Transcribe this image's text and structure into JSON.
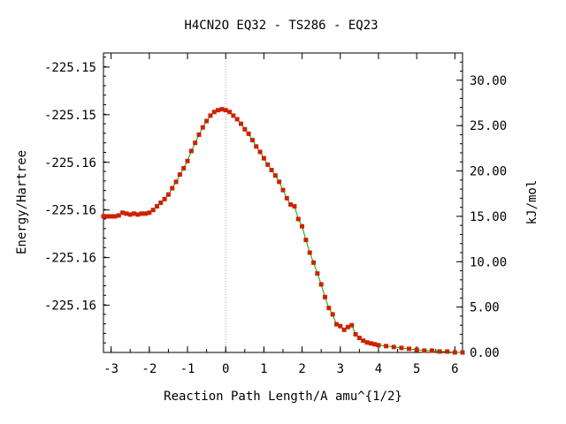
{
  "chart_data": {
    "type": "line",
    "title": "H4CN2O   EQ32 - TS286 - EQ23",
    "xlabel": "Reaction Path Length/A amu^{1/2}",
    "ylabel_left": "Energy/Hartree",
    "ylabel_right": "kJ/mol",
    "xlim": [
      -3.2,
      6.2
    ],
    "ylim_right": [
      0,
      33
    ],
    "x_ticks": [
      -3,
      -2,
      -1,
      0,
      1,
      2,
      3,
      4,
      5,
      6
    ],
    "x_tick_labels": [
      "-3",
      "-2",
      "-1",
      "0",
      "1",
      "2",
      "3",
      "4",
      "5",
      "6"
    ],
    "left_ticks_kj": [
      5.2,
      10.45,
      15.7,
      20.95,
      26.2,
      31.45
    ],
    "left_tick_labels": [
      "-225.16",
      "-225.16",
      "-225.16",
      "-225.16",
      "-225.15",
      "-225.15"
    ],
    "right_ticks": [
      0,
      5,
      10,
      15,
      20,
      25,
      30
    ],
    "right_tick_labels": [
      "0.00",
      "5.00",
      "10.00",
      "15.00",
      "20.00",
      "25.00",
      "30.00"
    ],
    "ts_marker_x": 0,
    "series": [
      {
        "line_color": "#00aa00",
        "marker_color": "#cc2200",
        "x": [
          -3.2,
          -3.1,
          -3.0,
          -2.9,
          -2.8,
          -2.7,
          -2.6,
          -2.5,
          -2.4,
          -2.3,
          -2.2,
          -2.1,
          -2.0,
          -1.9,
          -1.8,
          -1.7,
          -1.6,
          -1.5,
          -1.4,
          -1.3,
          -1.2,
          -1.1,
          -1.0,
          -0.9,
          -0.8,
          -0.7,
          -0.6,
          -0.5,
          -0.4,
          -0.3,
          -0.2,
          -0.1,
          0.0,
          0.1,
          0.2,
          0.3,
          0.4,
          0.5,
          0.6,
          0.7,
          0.8,
          0.9,
          1.0,
          1.1,
          1.2,
          1.3,
          1.4,
          1.5,
          1.6,
          1.7,
          1.8,
          1.9,
          2.0,
          2.1,
          2.2,
          2.3,
          2.4,
          2.5,
          2.6,
          2.7,
          2.8,
          2.9,
          3.0,
          3.1,
          3.2,
          3.3,
          3.4,
          3.5,
          3.6,
          3.7,
          3.8,
          3.9,
          4.0,
          4.2,
          4.4,
          4.6,
          4.8,
          5.0,
          5.2,
          5.4,
          5.6,
          5.8,
          6.0,
          6.2
        ],
        "y": [
          15.0,
          15.0,
          15.0,
          15.0,
          15.1,
          15.4,
          15.3,
          15.2,
          15.3,
          15.2,
          15.3,
          15.3,
          15.4,
          15.7,
          16.1,
          16.5,
          16.9,
          17.4,
          18.1,
          18.8,
          19.6,
          20.3,
          21.1,
          22.2,
          23.1,
          24.0,
          24.8,
          25.5,
          26.1,
          26.5,
          26.7,
          26.8,
          26.7,
          26.5,
          26.1,
          25.7,
          25.2,
          24.6,
          24.1,
          23.4,
          22.7,
          22.1,
          21.4,
          20.7,
          20.1,
          19.5,
          18.8,
          17.9,
          17.0,
          16.3,
          16.1,
          14.7,
          13.9,
          12.4,
          11.0,
          9.9,
          8.7,
          7.5,
          6.1,
          4.9,
          4.2,
          3.1,
          2.9,
          2.5,
          2.8,
          3.0,
          2.0,
          1.6,
          1.3,
          1.1,
          1.0,
          0.9,
          0.8,
          0.7,
          0.6,
          0.5,
          0.4,
          0.3,
          0.2,
          0.2,
          0.1,
          0.1,
          0.0,
          0.0
        ]
      }
    ]
  }
}
